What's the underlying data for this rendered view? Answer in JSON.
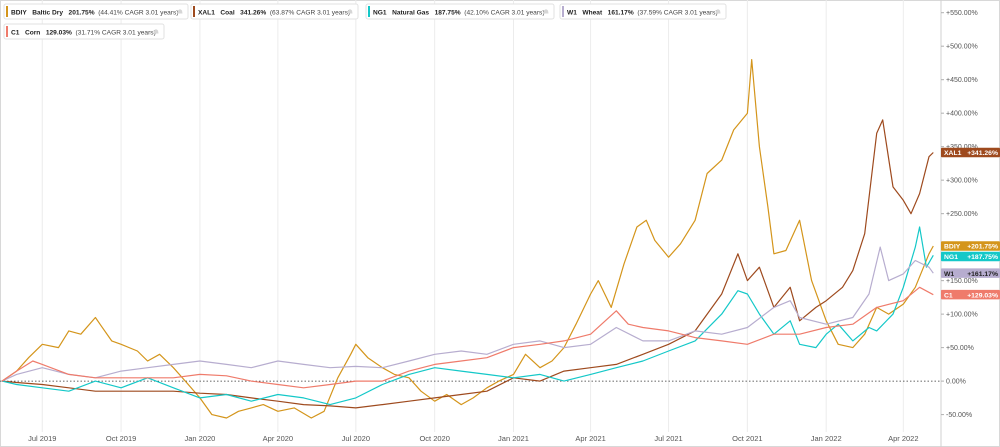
{
  "chart_data": {
    "type": "line",
    "title": "",
    "xlabel": "",
    "ylabel": "",
    "x_range": [
      "2019-05-15",
      "2022-05-15"
    ],
    "ylim": [
      -70,
      560
    ],
    "y_ticks": [
      -50,
      0,
      50,
      100,
      150,
      200,
      250,
      300,
      350,
      400,
      450,
      500,
      550
    ],
    "y_tick_labels": [
      "-50.00%",
      "0.00%",
      "+50.00%",
      "+100.00%",
      "+150.00%",
      "+200.00%",
      "+250.00%",
      "+300.00%",
      "+350.00%",
      "+400.00%",
      "+450.00%",
      "+500.00%",
      "+550.00%"
    ],
    "x_ticks": [
      "2019-07-01",
      "2019-10-01",
      "2020-01-01",
      "2020-04-01",
      "2020-07-01",
      "2020-10-01",
      "2021-01-01",
      "2021-04-01",
      "2021-07-01",
      "2021-10-01",
      "2022-01-01",
      "2022-04-01"
    ],
    "x_tick_labels": [
      "Jul 2019",
      "Oct 2019",
      "Jan 2020",
      "Apr 2020",
      "Jul 2020",
      "Oct 2020",
      "Jan 2021",
      "Apr 2021",
      "Jul 2021",
      "Oct 2021",
      "Jan 2022",
      "Apr 2022"
    ],
    "grid": "vertical",
    "zero_line": "dotted",
    "legend_position": "top-left",
    "series": [
      {
        "ticker": "BDIY",
        "name": "Baltic Dry",
        "change": "201.75%",
        "cagr": "(44.41% CAGR 3.01 years)",
        "end_label": "+201.75%",
        "color": "#d4951b",
        "points": [
          [
            "2019-05-15",
            0
          ],
          [
            "2019-06-01",
            15
          ],
          [
            "2019-06-15",
            35
          ],
          [
            "2019-07-01",
            55
          ],
          [
            "2019-07-20",
            50
          ],
          [
            "2019-08-01",
            75
          ],
          [
            "2019-08-15",
            70
          ],
          [
            "2019-09-01",
            95
          ],
          [
            "2019-09-08",
            82
          ],
          [
            "2019-09-20",
            60
          ],
          [
            "2019-10-01",
            55
          ],
          [
            "2019-10-20",
            45
          ],
          [
            "2019-11-01",
            30
          ],
          [
            "2019-11-15",
            40
          ],
          [
            "2019-12-01",
            20
          ],
          [
            "2019-12-15",
            0
          ],
          [
            "2020-01-01",
            -25
          ],
          [
            "2020-01-15",
            -50
          ],
          [
            "2020-02-01",
            -55
          ],
          [
            "2020-02-15",
            -45
          ],
          [
            "2020-03-01",
            -40
          ],
          [
            "2020-03-15",
            -35
          ],
          [
            "2020-04-01",
            -45
          ],
          [
            "2020-04-20",
            -40
          ],
          [
            "2020-05-10",
            -55
          ],
          [
            "2020-05-25",
            -45
          ],
          [
            "2020-06-10",
            5
          ],
          [
            "2020-06-25",
            40
          ],
          [
            "2020-07-01",
            55
          ],
          [
            "2020-07-15",
            35
          ],
          [
            "2020-08-01",
            20
          ],
          [
            "2020-08-15",
            10
          ],
          [
            "2020-09-01",
            5
          ],
          [
            "2020-09-15",
            -15
          ],
          [
            "2020-10-01",
            -30
          ],
          [
            "2020-10-15",
            -20
          ],
          [
            "2020-11-01",
            -35
          ],
          [
            "2020-11-15",
            -25
          ],
          [
            "2020-12-01",
            -10
          ],
          [
            "2020-12-15",
            0
          ],
          [
            "2021-01-01",
            10
          ],
          [
            "2021-01-15",
            40
          ],
          [
            "2021-02-01",
            20
          ],
          [
            "2021-02-15",
            30
          ],
          [
            "2021-03-01",
            50
          ],
          [
            "2021-03-15",
            85
          ],
          [
            "2021-04-01",
            130
          ],
          [
            "2021-04-10",
            150
          ],
          [
            "2021-04-25",
            110
          ],
          [
            "2021-05-10",
            175
          ],
          [
            "2021-05-25",
            230
          ],
          [
            "2021-06-05",
            240
          ],
          [
            "2021-06-15",
            210
          ],
          [
            "2021-07-01",
            185
          ],
          [
            "2021-07-15",
            205
          ],
          [
            "2021-08-01",
            240
          ],
          [
            "2021-08-15",
            310
          ],
          [
            "2021-09-01",
            330
          ],
          [
            "2021-09-15",
            375
          ],
          [
            "2021-10-01",
            400
          ],
          [
            "2021-10-06",
            480
          ],
          [
            "2021-10-15",
            350
          ],
          [
            "2021-10-25",
            260
          ],
          [
            "2021-11-01",
            190
          ],
          [
            "2021-11-15",
            195
          ],
          [
            "2021-12-01",
            240
          ],
          [
            "2021-12-15",
            150
          ],
          [
            "2022-01-01",
            90
          ],
          [
            "2022-01-15",
            55
          ],
          [
            "2022-02-01",
            50
          ],
          [
            "2022-02-15",
            70
          ],
          [
            "2022-03-01",
            110
          ],
          [
            "2022-03-15",
            100
          ],
          [
            "2022-04-01",
            115
          ],
          [
            "2022-04-15",
            140
          ],
          [
            "2022-05-01",
            190
          ],
          [
            "2022-05-06",
            201.75
          ]
        ]
      },
      {
        "ticker": "XAL1",
        "name": "Coal",
        "change": "341.26%",
        "cagr": "(63.87% CAGR 3.01 years)",
        "end_label": "+341.26%",
        "color": "#9e4a1e",
        "points": [
          [
            "2019-05-15",
            0
          ],
          [
            "2019-06-01",
            -2
          ],
          [
            "2019-07-01",
            -5
          ],
          [
            "2019-08-01",
            -10
          ],
          [
            "2019-09-01",
            -15
          ],
          [
            "2019-10-01",
            -15
          ],
          [
            "2019-11-01",
            -15
          ],
          [
            "2019-12-01",
            -15
          ],
          [
            "2020-01-01",
            -18
          ],
          [
            "2020-02-01",
            -20
          ],
          [
            "2020-03-01",
            -25
          ],
          [
            "2020-04-01",
            -30
          ],
          [
            "2020-05-01",
            -35
          ],
          [
            "2020-06-01",
            -37
          ],
          [
            "2020-07-01",
            -40
          ],
          [
            "2020-08-01",
            -35
          ],
          [
            "2020-09-01",
            -30
          ],
          [
            "2020-10-01",
            -25
          ],
          [
            "2020-11-01",
            -20
          ],
          [
            "2020-12-01",
            -15
          ],
          [
            "2021-01-01",
            5
          ],
          [
            "2021-02-01",
            0
          ],
          [
            "2021-03-01",
            15
          ],
          [
            "2021-04-01",
            20
          ],
          [
            "2021-05-01",
            25
          ],
          [
            "2021-06-01",
            40
          ],
          [
            "2021-07-01",
            55
          ],
          [
            "2021-08-01",
            75
          ],
          [
            "2021-09-01",
            130
          ],
          [
            "2021-09-20",
            190
          ],
          [
            "2021-10-01",
            150
          ],
          [
            "2021-10-15",
            170
          ],
          [
            "2021-11-01",
            110
          ],
          [
            "2021-11-20",
            140
          ],
          [
            "2021-12-01",
            90
          ],
          [
            "2021-12-20",
            110
          ],
          [
            "2022-01-01",
            120
          ],
          [
            "2022-01-20",
            140
          ],
          [
            "2022-02-01",
            165
          ],
          [
            "2022-02-15",
            220
          ],
          [
            "2022-03-01",
            370
          ],
          [
            "2022-03-08",
            390
          ],
          [
            "2022-03-20",
            290
          ],
          [
            "2022-04-01",
            270
          ],
          [
            "2022-04-10",
            250
          ],
          [
            "2022-04-20",
            280
          ],
          [
            "2022-05-01",
            335
          ],
          [
            "2022-05-06",
            341.26
          ]
        ]
      },
      {
        "ticker": "NG1",
        "name": "Natural Gas",
        "change": "187.75%",
        "cagr": "(42.10% CAGR 3.01 years)",
        "end_label": "+187.75%",
        "color": "#14c8c8",
        "points": [
          [
            "2019-05-15",
            0
          ],
          [
            "2019-06-01",
            -5
          ],
          [
            "2019-07-01",
            -10
          ],
          [
            "2019-08-01",
            -15
          ],
          [
            "2019-09-01",
            0
          ],
          [
            "2019-10-01",
            -10
          ],
          [
            "2019-11-01",
            5
          ],
          [
            "2019-12-01",
            -10
          ],
          [
            "2020-01-01",
            -25
          ],
          [
            "2020-02-01",
            -20
          ],
          [
            "2020-03-01",
            -30
          ],
          [
            "2020-04-01",
            -20
          ],
          [
            "2020-05-01",
            -25
          ],
          [
            "2020-06-01",
            -35
          ],
          [
            "2020-07-01",
            -25
          ],
          [
            "2020-08-01",
            -5
          ],
          [
            "2020-09-01",
            10
          ],
          [
            "2020-10-01",
            20
          ],
          [
            "2020-11-01",
            15
          ],
          [
            "2020-12-01",
            10
          ],
          [
            "2021-01-01",
            5
          ],
          [
            "2021-02-01",
            10
          ],
          [
            "2021-03-01",
            0
          ],
          [
            "2021-04-01",
            10
          ],
          [
            "2021-05-01",
            20
          ],
          [
            "2021-06-01",
            30
          ],
          [
            "2021-07-01",
            45
          ],
          [
            "2021-08-01",
            60
          ],
          [
            "2021-09-01",
            100
          ],
          [
            "2021-09-20",
            135
          ],
          [
            "2021-10-01",
            130
          ],
          [
            "2021-10-15",
            100
          ],
          [
            "2021-11-01",
            70
          ],
          [
            "2021-11-20",
            90
          ],
          [
            "2021-12-01",
            55
          ],
          [
            "2021-12-20",
            50
          ],
          [
            "2022-01-01",
            70
          ],
          [
            "2022-01-15",
            85
          ],
          [
            "2022-02-01",
            60
          ],
          [
            "2022-02-20",
            80
          ],
          [
            "2022-03-01",
            75
          ],
          [
            "2022-03-20",
            100
          ],
          [
            "2022-04-01",
            140
          ],
          [
            "2022-04-15",
            200
          ],
          [
            "2022-04-20",
            230
          ],
          [
            "2022-04-28",
            170
          ],
          [
            "2022-05-06",
            187.75
          ]
        ]
      },
      {
        "ticker": "W1",
        "name": "Wheat",
        "change": "161.17%",
        "cagr": "(37.59% CAGR 3.01 years)",
        "end_label": "+161.17%",
        "color": "#b7adcf",
        "points": [
          [
            "2019-05-15",
            0
          ],
          [
            "2019-06-01",
            10
          ],
          [
            "2019-07-01",
            20
          ],
          [
            "2019-08-01",
            10
          ],
          [
            "2019-09-01",
            5
          ],
          [
            "2019-10-01",
            15
          ],
          [
            "2019-11-01",
            20
          ],
          [
            "2019-12-01",
            25
          ],
          [
            "2020-01-01",
            30
          ],
          [
            "2020-02-01",
            25
          ],
          [
            "2020-03-01",
            20
          ],
          [
            "2020-04-01",
            30
          ],
          [
            "2020-05-01",
            25
          ],
          [
            "2020-06-01",
            20
          ],
          [
            "2020-07-01",
            22
          ],
          [
            "2020-08-01",
            20
          ],
          [
            "2020-09-01",
            30
          ],
          [
            "2020-10-01",
            40
          ],
          [
            "2020-11-01",
            45
          ],
          [
            "2020-12-01",
            40
          ],
          [
            "2021-01-01",
            55
          ],
          [
            "2021-02-01",
            60
          ],
          [
            "2021-03-01",
            50
          ],
          [
            "2021-04-01",
            55
          ],
          [
            "2021-05-01",
            80
          ],
          [
            "2021-06-01",
            60
          ],
          [
            "2021-07-01",
            60
          ],
          [
            "2021-08-01",
            75
          ],
          [
            "2021-09-01",
            70
          ],
          [
            "2021-10-01",
            80
          ],
          [
            "2021-11-01",
            110
          ],
          [
            "2021-11-20",
            120
          ],
          [
            "2021-12-01",
            95
          ],
          [
            "2022-01-01",
            85
          ],
          [
            "2022-02-01",
            95
          ],
          [
            "2022-02-20",
            130
          ],
          [
            "2022-03-05",
            200
          ],
          [
            "2022-03-15",
            150
          ],
          [
            "2022-04-01",
            160
          ],
          [
            "2022-04-15",
            180
          ],
          [
            "2022-05-01",
            170
          ],
          [
            "2022-05-06",
            161.17
          ]
        ]
      },
      {
        "ticker": "C1",
        "name": "Corn",
        "change": "129.03%",
        "cagr": "(31.71% CAGR 3.01 years)",
        "end_label": "+129.03%",
        "color": "#ef7b6b",
        "points": [
          [
            "2019-05-15",
            0
          ],
          [
            "2019-06-01",
            15
          ],
          [
            "2019-06-20",
            30
          ],
          [
            "2019-07-01",
            25
          ],
          [
            "2019-08-01",
            10
          ],
          [
            "2019-09-01",
            5
          ],
          [
            "2019-10-01",
            5
          ],
          [
            "2019-11-01",
            5
          ],
          [
            "2019-12-01",
            5
          ],
          [
            "2020-01-01",
            10
          ],
          [
            "2020-02-01",
            8
          ],
          [
            "2020-03-01",
            0
          ],
          [
            "2020-04-01",
            -5
          ],
          [
            "2020-05-01",
            -10
          ],
          [
            "2020-06-01",
            -5
          ],
          [
            "2020-07-01",
            0
          ],
          [
            "2020-08-01",
            0
          ],
          [
            "2020-09-01",
            15
          ],
          [
            "2020-10-01",
            25
          ],
          [
            "2020-11-01",
            30
          ],
          [
            "2020-12-01",
            35
          ],
          [
            "2021-01-01",
            50
          ],
          [
            "2021-02-01",
            55
          ],
          [
            "2021-03-01",
            60
          ],
          [
            "2021-04-01",
            70
          ],
          [
            "2021-05-01",
            105
          ],
          [
            "2021-05-15",
            85
          ],
          [
            "2021-06-01",
            80
          ],
          [
            "2021-07-01",
            75
          ],
          [
            "2021-08-01",
            65
          ],
          [
            "2021-09-01",
            60
          ],
          [
            "2021-10-01",
            55
          ],
          [
            "2021-11-01",
            70
          ],
          [
            "2021-12-01",
            70
          ],
          [
            "2022-01-01",
            80
          ],
          [
            "2022-02-01",
            85
          ],
          [
            "2022-03-01",
            110
          ],
          [
            "2022-04-01",
            120
          ],
          [
            "2022-04-20",
            140
          ],
          [
            "2022-05-06",
            129.03
          ]
        ]
      }
    ]
  }
}
